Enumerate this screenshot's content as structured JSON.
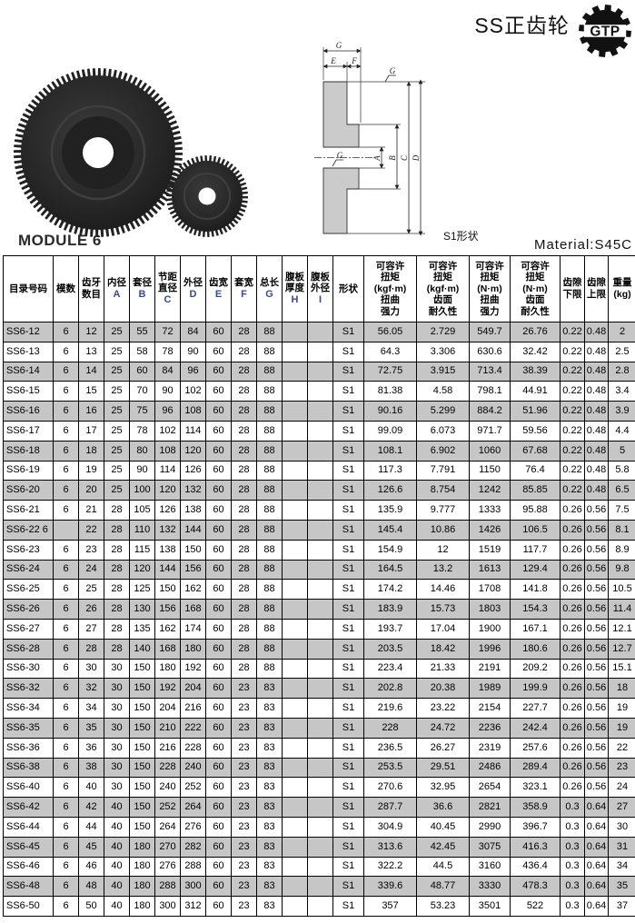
{
  "page": {
    "title": "SS正齿轮",
    "logo_text": "GTP"
  },
  "table_meta": {
    "module_label": "MODULE 6",
    "material_label": "Material:S45C",
    "shape_caption": "S1形状"
  },
  "drawing": {
    "labels": {
      "g_top": "G",
      "e": "E",
      "f": "F",
      "a": "A",
      "b": "B",
      "c": "C",
      "d": "D",
      "finish_top": "G",
      "finish_bore": "G"
    }
  },
  "colors": {
    "row_alt_gray": "#c6c6c6",
    "dim_letter_blue": "#3347b0",
    "gear_dark": "#262626"
  },
  "table": {
    "columns": [
      {
        "title": "目录号码",
        "sub": ""
      },
      {
        "title": "模数",
        "sub": ""
      },
      {
        "title": "齿牙\n数目",
        "sub": ""
      },
      {
        "title": "内径",
        "sub": "A"
      },
      {
        "title": "套径",
        "sub": "B"
      },
      {
        "title": "节距\n直径",
        "sub": "C"
      },
      {
        "title": "外径",
        "sub": "D"
      },
      {
        "title": "齿宽",
        "sub": "E"
      },
      {
        "title": "套宽",
        "sub": "F"
      },
      {
        "title": "总长",
        "sub": "G"
      },
      {
        "title": "腹板\n厚度",
        "sub": "H"
      },
      {
        "title": "腹板\n外径",
        "sub": "I"
      },
      {
        "title": "形状",
        "sub": ""
      },
      {
        "title": "可容许\n扭矩\n(kgf·m)\n扭曲\n强力",
        "sub": ""
      },
      {
        "title": "可容许\n扭矩\n(kgf·m)\n齿面\n耐久性",
        "sub": ""
      },
      {
        "title": "可容许\n扭矩\n(N·m)\n扭曲\n强力",
        "sub": ""
      },
      {
        "title": "可容许\n扭矩\n(N·m)\n齿面\n耐久性",
        "sub": ""
      },
      {
        "title": "齿隙\n下限",
        "sub": ""
      },
      {
        "title": "齿隙\n上限",
        "sub": ""
      },
      {
        "title": "重量\n(kg)",
        "sub": ""
      }
    ],
    "rows": [
      [
        "SS6-12",
        "6",
        "12",
        "25",
        "55",
        "72",
        "84",
        "60",
        "28",
        "88",
        "",
        "",
        "S1",
        "56.05",
        "2.729",
        "549.7",
        "26.76",
        "0.22",
        "0.48",
        "2"
      ],
      [
        "SS6-13",
        "6",
        "13",
        "25",
        "58",
        "78",
        "90",
        "60",
        "28",
        "88",
        "",
        "",
        "S1",
        "64.3",
        "3.306",
        "630.6",
        "32.42",
        "0.22",
        "0.48",
        "2.5"
      ],
      [
        "SS6-14",
        "6",
        "14",
        "25",
        "60",
        "84",
        "96",
        "60",
        "28",
        "88",
        "",
        "",
        "S1",
        "72.75",
        "3.915",
        "713.4",
        "38.39",
        "0.22",
        "0.48",
        "2.8"
      ],
      [
        "SS6-15",
        "6",
        "15",
        "25",
        "70",
        "90",
        "102",
        "60",
        "28",
        "88",
        "",
        "",
        "S1",
        "81.38",
        "4.58",
        "798.1",
        "44.91",
        "0.22",
        "0.48",
        "3.4"
      ],
      [
        "SS6-16",
        "6",
        "16",
        "25",
        "75",
        "96",
        "108",
        "60",
        "28",
        "88",
        "",
        "",
        "S1",
        "90.16",
        "5.299",
        "884.2",
        "51.96",
        "0.22",
        "0.48",
        "3.9"
      ],
      [
        "SS6-17",
        "6",
        "17",
        "25",
        "78",
        "102",
        "114",
        "60",
        "28",
        "88",
        "",
        "",
        "S1",
        "99.09",
        "6.073",
        "971.7",
        "59.56",
        "0.22",
        "0.48",
        "4.4"
      ],
      [
        "SS6-18",
        "6",
        "18",
        "25",
        "80",
        "108",
        "120",
        "60",
        "28",
        "88",
        "",
        "",
        "S1",
        "108.1",
        "6.902",
        "1060",
        "67.68",
        "0.22",
        "0.48",
        "5"
      ],
      [
        "SS6-19",
        "6",
        "19",
        "25",
        "90",
        "114",
        "126",
        "60",
        "28",
        "88",
        "",
        "",
        "S1",
        "117.3",
        "7.791",
        "1150",
        "76.4",
        "0.22",
        "0.48",
        "5.8"
      ],
      [
        "SS6-20",
        "6",
        "20",
        "25",
        "100",
        "120",
        "132",
        "60",
        "28",
        "88",
        "",
        "",
        "S1",
        "126.6",
        "8.754",
        "1242",
        "85.85",
        "0.22",
        "0.48",
        "6.5"
      ],
      [
        "SS6-21",
        "6",
        "21",
        "28",
        "105",
        "126",
        "138",
        "60",
        "28",
        "88",
        "",
        "",
        "S1",
        "135.9",
        "9.777",
        "1333",
        "95.88",
        "0.26",
        "0.56",
        "7.5"
      ],
      [
        "SS6-22 6",
        "",
        "22",
        "28",
        "110",
        "132",
        "144",
        "60",
        "28",
        "88",
        "",
        "",
        "S1",
        "145.4",
        "10.86",
        "1426",
        "106.5",
        "0.26",
        "0.56",
        "8.1"
      ],
      [
        "SS6-23",
        "6",
        "23",
        "28",
        "115",
        "138",
        "150",
        "60",
        "28",
        "88",
        "",
        "",
        "S1",
        "154.9",
        "12",
        "1519",
        "117.7",
        "0.26",
        "0.56",
        "8.9"
      ],
      [
        "SS6-24",
        "6",
        "24",
        "28",
        "120",
        "144",
        "156",
        "60",
        "28",
        "88",
        "",
        "",
        "S1",
        "164.5",
        "13.2",
        "1613",
        "129.4",
        "0.26",
        "0.56",
        "9.8"
      ],
      [
        "SS6-25",
        "6",
        "25",
        "28",
        "125",
        "150",
        "162",
        "60",
        "28",
        "88",
        "",
        "",
        "S1",
        "174.2",
        "14.46",
        "1708",
        "141.8",
        "0.26",
        "0.56",
        "10.5"
      ],
      [
        "SS6-26",
        "6",
        "26",
        "28",
        "130",
        "156",
        "168",
        "60",
        "28",
        "88",
        "",
        "",
        "S1",
        "183.9",
        "15.73",
        "1803",
        "154.3",
        "0.26",
        "0.56",
        "11.4"
      ],
      [
        "SS6-27",
        "6",
        "27",
        "28",
        "135",
        "162",
        "174",
        "60",
        "28",
        "88",
        "",
        "",
        "S1",
        "193.7",
        "17.04",
        "1900",
        "167.1",
        "0.26",
        "0.56",
        "12.1"
      ],
      [
        "SS6-28",
        "6",
        "28",
        "28",
        "140",
        "168",
        "180",
        "60",
        "28",
        "88",
        "",
        "",
        "S1",
        "203.5",
        "18.42",
        "1996",
        "180.6",
        "0.26",
        "0.56",
        "12.7"
      ],
      [
        "SS6-30",
        "6",
        "30",
        "30",
        "150",
        "180",
        "192",
        "60",
        "28",
        "88",
        "",
        "",
        "S1",
        "223.4",
        "21.33",
        "2191",
        "209.2",
        "0.26",
        "0.56",
        "15.1"
      ],
      [
        "SS6-32",
        "6",
        "32",
        "30",
        "150",
        "192",
        "204",
        "60",
        "23",
        "83",
        "",
        "",
        "S1",
        "202.8",
        "20.38",
        "1989",
        "199.9",
        "0.26",
        "0.56",
        "18"
      ],
      [
        "SS6-34",
        "6",
        "34",
        "30",
        "150",
        "204",
        "216",
        "60",
        "23",
        "83",
        "",
        "",
        "S1",
        "219.6",
        "23.22",
        "2154",
        "227.7",
        "0.26",
        "0.56",
        "19"
      ],
      [
        "SS6-35",
        "6",
        "35",
        "30",
        "150",
        "210",
        "222",
        "60",
        "23",
        "83",
        "",
        "",
        "S1",
        "228",
        "24.72",
        "2236",
        "242.4",
        "0.26",
        "0.56",
        "19"
      ],
      [
        "SS6-36",
        "6",
        "36",
        "30",
        "150",
        "216",
        "228",
        "60",
        "23",
        "83",
        "",
        "",
        "S1",
        "236.5",
        "26.27",
        "2319",
        "257.6",
        "0.26",
        "0.56",
        "22"
      ],
      [
        "SS6-38",
        "6",
        "38",
        "30",
        "150",
        "228",
        "240",
        "60",
        "23",
        "83",
        "",
        "",
        "S1",
        "253.5",
        "29.51",
        "2486",
        "289.4",
        "0.26",
        "0.56",
        "23"
      ],
      [
        "SS6-40",
        "6",
        "40",
        "30",
        "150",
        "240",
        "252",
        "60",
        "23",
        "83",
        "",
        "",
        "S1",
        "270.6",
        "32.95",
        "2654",
        "323.1",
        "0.26",
        "0.56",
        "24"
      ],
      [
        "SS6-42",
        "6",
        "42",
        "40",
        "150",
        "252",
        "264",
        "60",
        "23",
        "83",
        "",
        "",
        "S1",
        "287.7",
        "36.6",
        "2821",
        "358.9",
        "0.3",
        "0.64",
        "27"
      ],
      [
        "SS6-44",
        "6",
        "44",
        "40",
        "150",
        "264",
        "276",
        "60",
        "23",
        "83",
        "",
        "",
        "S1",
        "304.9",
        "40.45",
        "2990",
        "396.7",
        "0.3",
        "0.64",
        "30"
      ],
      [
        "SS6-45",
        "6",
        "45",
        "40",
        "180",
        "270",
        "282",
        "60",
        "23",
        "83",
        "",
        "",
        "S1",
        "313.6",
        "42.45",
        "3075",
        "416.3",
        "0.3",
        "0.64",
        "31"
      ],
      [
        "SS6-46",
        "6",
        "46",
        "40",
        "180",
        "276",
        "288",
        "60",
        "23",
        "83",
        "",
        "",
        "S1",
        "322.2",
        "44.5",
        "3160",
        "436.4",
        "0.3",
        "0.64",
        "34"
      ],
      [
        "SS6-48",
        "6",
        "48",
        "40",
        "180",
        "288",
        "300",
        "60",
        "23",
        "83",
        "",
        "",
        "S1",
        "339.6",
        "48.77",
        "3330",
        "478.3",
        "0.3",
        "0.64",
        "35"
      ],
      [
        "SS6-50",
        "6",
        "50",
        "40",
        "180",
        "300",
        "312",
        "60",
        "23",
        "83",
        "",
        "",
        "S1",
        "357",
        "53.23",
        "3501",
        "522",
        "0.3",
        "0.64",
        "37"
      ]
    ]
  }
}
